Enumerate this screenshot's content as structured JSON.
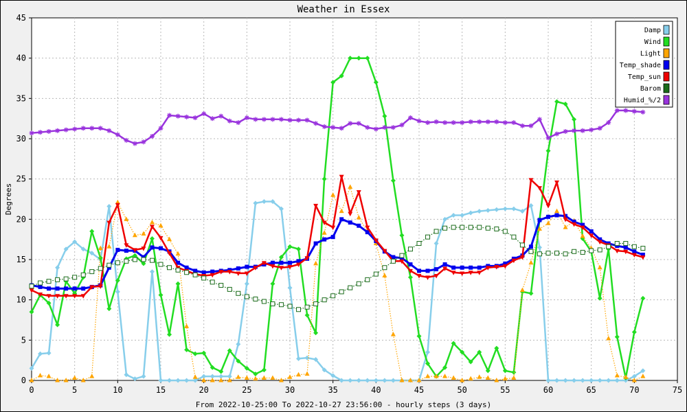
{
  "chart_data": {
    "type": "line",
    "title": "Weather in Essex",
    "xlabel": "From 2022-10-25:00 To 2022-10-27 23:56:00 - hourly steps (3 days)",
    "ylabel": "Degrees",
    "xlim": [
      0,
      75
    ],
    "ylim": [
      0,
      45
    ],
    "xticks": [
      0,
      5,
      10,
      15,
      20,
      25,
      30,
      35,
      40,
      45,
      50,
      55,
      60,
      65,
      70,
      75
    ],
    "yticks": [
      0,
      5,
      10,
      15,
      20,
      25,
      30,
      35,
      40,
      45
    ],
    "grid": true,
    "legend_position": "top-right",
    "series": [
      {
        "name": "Damp",
        "color": "#87ceeb",
        "marker": "diamond",
        "values": [
          1.5,
          3.3,
          3.4,
          14,
          16.3,
          17.2,
          16.3,
          15.8,
          15,
          21.6,
          11,
          0.7,
          0.2,
          0.5,
          13.5,
          0,
          0,
          0,
          0,
          0,
          0.5,
          0.5,
          0.5,
          0.5,
          4.5,
          12,
          22,
          22.2,
          22.2,
          21.3,
          11.5,
          2.7,
          2.8,
          2.6,
          1.3,
          0.6,
          0,
          0,
          0,
          0,
          0,
          0,
          0,
          0,
          0,
          0,
          3.5,
          17,
          20,
          20.5,
          20.5,
          20.8,
          21,
          21.1,
          21.2,
          21.3,
          21.3,
          21,
          21.7,
          16.5,
          0,
          0,
          0,
          0,
          0,
          0,
          0,
          0,
          0,
          0,
          0.5,
          1.2
        ]
      },
      {
        "name": "Wind",
        "color": "#22dd22",
        "marker": "diamond",
        "values": [
          8.5,
          10.6,
          9.6,
          6.9,
          12.3,
          10.8,
          12.8,
          18.5,
          15.2,
          8.9,
          12.4,
          15.1,
          15.5,
          14.5,
          17.6,
          10.6,
          5.7,
          12,
          3.8,
          3.3,
          3.4,
          1.6,
          1.1,
          3.7,
          2.4,
          1.5,
          0.8,
          1.3,
          12,
          15.3,
          16.6,
          16.3,
          8.1,
          5.9,
          25,
          37,
          37.8,
          40,
          40,
          40,
          37,
          32.8,
          24.8,
          18,
          12.8,
          5.5,
          2.1,
          0.5,
          1.6,
          4.6,
          3.5,
          2.3,
          3.5,
          1.2,
          4,
          1.2,
          1,
          11,
          10.8,
          20,
          28.5,
          34.6,
          34.3,
          32.4,
          17.6,
          16,
          10.2,
          16.3,
          5.4,
          0.3,
          6,
          10.2
        ]
      },
      {
        "name": "Light",
        "color": "#ffa500",
        "marker": "triangle",
        "values": [
          0,
          0.6,
          0.5,
          0,
          0,
          0.3,
          0,
          0.5,
          16.4,
          16.6,
          22.1,
          20,
          18,
          18.2,
          19.6,
          19.2,
          17.5,
          15.7,
          6.7,
          0.4,
          0,
          0,
          0,
          0,
          0.4,
          0.3,
          0.2,
          0.3,
          0.3,
          0,
          0.4,
          0.7,
          0.8,
          14.5,
          18.3,
          23,
          21,
          24,
          20.2,
          18.5,
          17,
          13,
          5.7,
          0,
          0,
          0,
          0.5,
          0.5,
          0.5,
          0.3,
          0,
          0.2,
          0.4,
          0.3,
          0,
          0.2,
          0.3,
          11.2,
          14.6,
          18.8,
          19.5,
          21,
          19,
          19.8,
          17.9,
          16.4,
          14,
          5.2,
          0.6,
          0.4,
          0,
          0.5
        ]
      },
      {
        "name": "Temp_shade",
        "color": "#0000ee",
        "marker": "square",
        "values": [
          11.8,
          11.6,
          11.4,
          11.4,
          11.4,
          11.4,
          11.4,
          11.6,
          11.8,
          14,
          16.2,
          16.1,
          16.1,
          15.3,
          16.5,
          16.4,
          16,
          14.6,
          14,
          13.6,
          13.4,
          13.5,
          13.6,
          13.7,
          13.9,
          14.1,
          14.1,
          14.4,
          14.6,
          14.6,
          14.6,
          14.8,
          15.1,
          17,
          17.5,
          17.8,
          20,
          19.6,
          19.2,
          18.4,
          17.3,
          16,
          15.3,
          15.2,
          14.4,
          13.6,
          13.6,
          13.8,
          14.4,
          14,
          14,
          14,
          14,
          14.2,
          14.2,
          14.5,
          15.1,
          15.5,
          16.6,
          19.9,
          20.3,
          20.5,
          20.4,
          19.7,
          19.3,
          18.5,
          17.5,
          17,
          16.7,
          16.5,
          16,
          15.6
        ]
      },
      {
        "name": "Temp_sun",
        "color": "#ee0000",
        "marker": "triangle-down",
        "values": [
          11.2,
          10.7,
          10.5,
          10.5,
          10.5,
          10.5,
          10.5,
          11.6,
          11.7,
          19.6,
          21.8,
          16.8,
          16.2,
          16.4,
          19.1,
          17.7,
          15.8,
          14,
          13.6,
          13.2,
          13,
          13.1,
          13.5,
          13.5,
          13.3,
          13.3,
          14,
          14.6,
          14.2,
          14,
          14.1,
          14.4,
          15.2,
          21.7,
          19.6,
          19,
          25.3,
          20.7,
          23.4,
          19,
          17.4,
          16.1,
          14.8,
          14.8,
          13.6,
          13,
          12.8,
          13,
          13.9,
          13.4,
          13.3,
          13.4,
          13.4,
          14,
          14.1,
          14.2,
          14.9,
          15.3,
          24.9,
          23.9,
          21.7,
          24.6,
          20,
          19.4,
          19,
          18,
          17.2,
          16.8,
          16.1,
          16,
          15.6,
          15.3
        ]
      },
      {
        "name": "Barom",
        "color": "#1a6b1a",
        "marker": "open-square",
        "values": [
          11.7,
          12.1,
          12.3,
          12.5,
          12.6,
          12.8,
          13.1,
          13.5,
          13.9,
          14.3,
          14.6,
          14.8,
          15,
          15,
          14.9,
          14.4,
          14,
          13.7,
          13.4,
          13.1,
          12.7,
          12.2,
          11.8,
          11.3,
          10.8,
          10.4,
          10.1,
          9.8,
          9.5,
          9.4,
          9.2,
          8.8,
          9.1,
          9.5,
          10,
          10.5,
          11,
          11.5,
          12,
          12.5,
          13.2,
          14,
          14.8,
          15.5,
          16.3,
          17,
          17.8,
          18.5,
          18.9,
          19,
          19,
          19,
          19,
          18.9,
          18.8,
          18.5,
          17.8,
          16.8,
          16,
          15.7,
          15.8,
          15.8,
          15.7,
          16,
          15.9,
          16.1,
          16.2,
          16.6,
          17,
          17,
          16.6,
          16.4
        ]
      },
      {
        "name": "Humid_%/2",
        "color": "#9933dd",
        "marker": "star",
        "values": [
          30.7,
          30.8,
          30.9,
          31,
          31.1,
          31.2,
          31.3,
          31.3,
          31.3,
          31,
          30.5,
          29.8,
          29.4,
          29.6,
          30.3,
          31.3,
          32.9,
          32.8,
          32.7,
          32.6,
          33.1,
          32.5,
          32.8,
          32.2,
          32,
          32.6,
          32.4,
          32.4,
          32.4,
          32.4,
          32.3,
          32.3,
          32.3,
          31.9,
          31.5,
          31.4,
          31.3,
          31.9,
          31.9,
          31.4,
          31.2,
          31.4,
          31.4,
          31.7,
          32.6,
          32.2,
          32,
          32.1,
          32,
          32,
          32,
          32.1,
          32.1,
          32.1,
          32.1,
          32,
          32,
          31.6,
          31.6,
          32.4,
          30.1,
          30.6,
          30.9,
          31,
          31,
          31.1,
          31.3,
          32,
          33.5,
          33.5,
          33.4,
          33.3
        ]
      }
    ]
  }
}
